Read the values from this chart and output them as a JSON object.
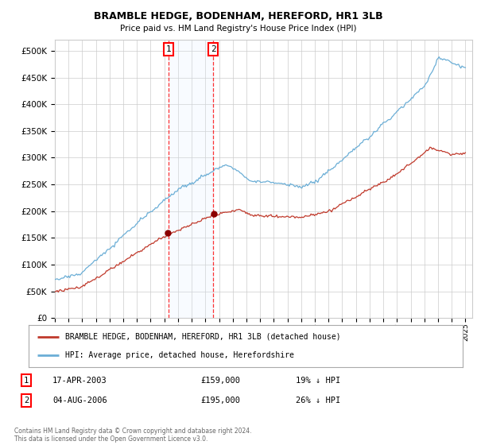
{
  "title": "BRAMBLE HEDGE, BODENHAM, HEREFORD, HR1 3LB",
  "subtitle": "Price paid vs. HM Land Registry's House Price Index (HPI)",
  "ylim": [
    0,
    520000
  ],
  "yticks": [
    0,
    50000,
    100000,
    150000,
    200000,
    250000,
    300000,
    350000,
    400000,
    450000,
    500000
  ],
  "hpi_color": "#6baed6",
  "price_color": "#c0392b",
  "marker_color": "#8b0000",
  "sale1_date": "17-APR-2003",
  "sale1_price": 159000,
  "sale1_hpi_pct": "19% ↓ HPI",
  "sale2_date": "04-AUG-2006",
  "sale2_price": 195000,
  "sale2_hpi_pct": "26% ↓ HPI",
  "legend_line1": "BRAMBLE HEDGE, BODENHAM, HEREFORD, HR1 3LB (detached house)",
  "legend_line2": "HPI: Average price, detached house, Herefordshire",
  "footnote": "Contains HM Land Registry data © Crown copyright and database right 2024.\nThis data is licensed under the Open Government Licence v3.0.",
  "background_color": "#ffffff",
  "grid_color": "#cccccc",
  "shade_color": "#ddeeff",
  "sale1_year": 2003.29,
  "sale2_year": 2006.58
}
